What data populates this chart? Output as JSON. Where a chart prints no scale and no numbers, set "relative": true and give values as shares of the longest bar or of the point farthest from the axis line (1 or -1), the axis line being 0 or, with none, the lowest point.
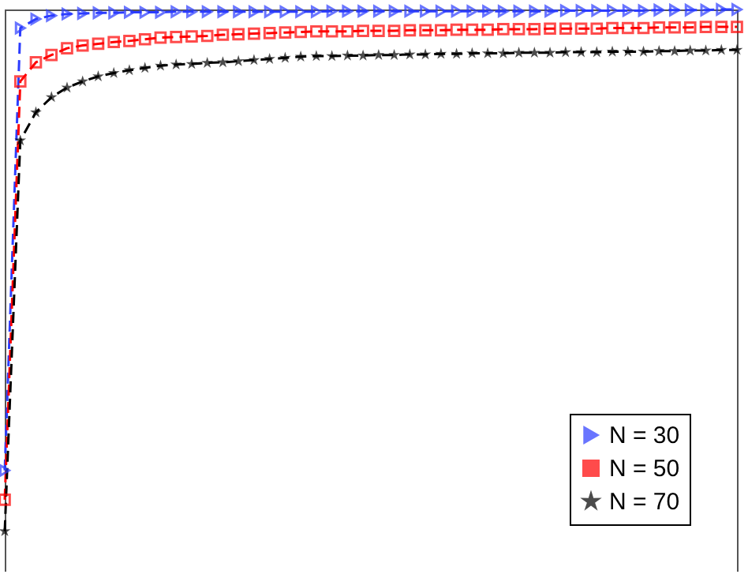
{
  "chart_data": {
    "type": "line",
    "relative": true,
    "line_style": "dashed",
    "legend": "bottom right",
    "categories": [
      null,
      null,
      null,
      null,
      null,
      null,
      null,
      null,
      null,
      null,
      null,
      null,
      null,
      null,
      null,
      null,
      null,
      null,
      null,
      null,
      null,
      null,
      null,
      null,
      null,
      null,
      null,
      null,
      null,
      null,
      null,
      null,
      null,
      null,
      null,
      null,
      null,
      null,
      null,
      null,
      null,
      null,
      null,
      null,
      null,
      null,
      null,
      null
    ],
    "series": [
      {
        "name": "N = 30",
        "color": "#2b3cff",
        "marker": "triangle",
        "values": [
          0.18,
          0.967,
          0.983,
          0.989,
          0.992,
          0.993,
          0.994,
          0.994,
          0.995,
          0.995,
          0.995,
          0.996,
          0.996,
          0.996,
          0.996,
          0.996,
          0.996,
          0.996,
          0.996,
          0.996,
          0.996,
          0.997,
          0.997,
          0.997,
          0.997,
          0.997,
          0.997,
          0.997,
          0.997,
          0.997,
          0.997,
          0.997,
          0.997,
          0.997,
          0.997,
          0.997,
          0.998,
          0.998,
          0.998,
          0.998,
          0.998,
          0.998,
          0.999,
          0.999,
          0.999,
          0.999,
          1,
          1
        ]
      },
      {
        "name": "N = 50",
        "color": "#ff0000",
        "marker": "square",
        "values": [
          0.128,
          0.872,
          0.906,
          0.919,
          0.931,
          0.936,
          0.939,
          0.942,
          0.944,
          0.947,
          0.95,
          0.951,
          0.952,
          0.953,
          0.955,
          0.956,
          0.957,
          0.958,
          0.959,
          0.96,
          0.961,
          0.961,
          0.961,
          0.962,
          0.962,
          0.962,
          0.963,
          0.963,
          0.963,
          0.964,
          0.964,
          0.964,
          0.965,
          0.965,
          0.965,
          0.966,
          0.966,
          0.966,
          0.966,
          0.967,
          0.967,
          0.967,
          0.968,
          0.968,
          0.968,
          0.969,
          0.969,
          0.969
        ]
      },
      {
        "name": "N = 70",
        "color": "#000000",
        "marker": "star",
        "values": [
          0.072,
          0.767,
          0.817,
          0.844,
          0.861,
          0.872,
          0.881,
          0.887,
          0.892,
          0.896,
          0.9,
          0.902,
          0.903,
          0.905,
          0.906,
          0.908,
          0.91,
          0.912,
          0.914,
          0.916,
          0.917,
          0.917,
          0.918,
          0.918,
          0.919,
          0.919,
          0.92,
          0.92,
          0.921,
          0.921,
          0.922,
          0.922,
          0.922,
          0.923,
          0.923,
          0.923,
          0.924,
          0.924,
          0.924,
          0.925,
          0.925,
          0.925,
          0.926,
          0.926,
          0.927,
          0.927,
          0.928,
          0.928
        ]
      }
    ]
  }
}
